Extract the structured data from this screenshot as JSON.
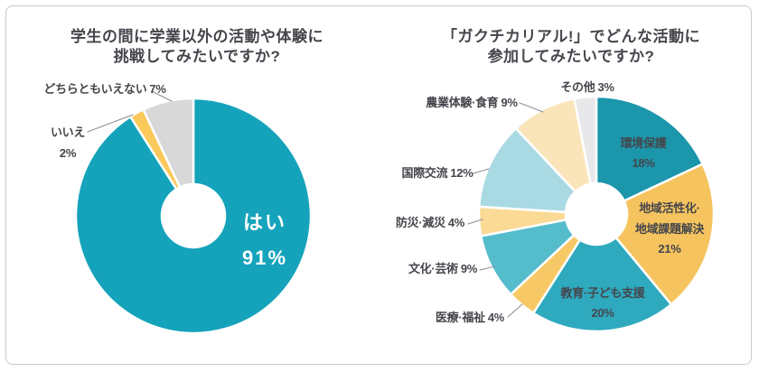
{
  "frame": {
    "background": "#FFFFFF",
    "border_color": "#C7C9CC"
  },
  "chart_data": [
    {
      "type": "pie",
      "subtype": "donut",
      "title": "学生の間に学業以外の活動や体験に挑戦してみたいですか?",
      "title_lines": [
        "学生の間に学業以外の活動や体験に",
        "挑戦してみたいですか?"
      ],
      "unit": "%",
      "start_angle": "12-oclock",
      "direction": "clockwise",
      "legend": "none",
      "slices": [
        {
          "label": "はい",
          "value": 91,
          "pct": "91%",
          "color": "#14A3BB",
          "label_position": "inside",
          "label_color": "#FFFFFF"
        },
        {
          "label": "いいえ",
          "value": 2,
          "pct": "2%",
          "color": "#FBC85A",
          "label_position": "outside",
          "label_color": "#45464C"
        },
        {
          "label": "どちらともいえない",
          "value": 7,
          "pct": "7%",
          "color": "#D8D8D9",
          "label_position": "outside",
          "label_color": "#45464C"
        }
      ]
    },
    {
      "type": "pie",
      "subtype": "donut",
      "title": "「ガクチカリアル!」でどんな活動に参加してみたいですか?",
      "title_lines": [
        "「ガクチカリアル!」でどんな活動に",
        "参加してみたいですか?"
      ],
      "unit": "%",
      "start_angle": "12-oclock",
      "direction": "clockwise",
      "legend": "none",
      "slices": [
        {
          "label": "環境保護",
          "value": 18,
          "pct": "18%",
          "color": "#1B96AB",
          "label_position": "inside",
          "label_color": "#3A3B40"
        },
        {
          "label": "地域活性化·地域課題解決",
          "label_lines": [
            "地域活性化·",
            "地域課題解決"
          ],
          "value": 21,
          "pct": "21%",
          "color": "#F6C45F",
          "label_position": "inside",
          "label_color": "#3A3B40"
        },
        {
          "label": "教育·子ども支援",
          "value": 20,
          "pct": "20%",
          "color": "#2EA9BE",
          "label_position": "inside",
          "label_color": "#3A3B40"
        },
        {
          "label": "医療·福祉",
          "value": 4,
          "pct": "4%",
          "color": "#F7C966",
          "label_position": "outside",
          "label_color": "#45464C"
        },
        {
          "label": "文化·芸術",
          "value": 9,
          "pct": "9%",
          "color": "#55BCCC",
          "label_position": "outside",
          "label_color": "#45464C"
        },
        {
          "label": "防災·減災",
          "value": 4,
          "pct": "4%",
          "color": "#FBDA96",
          "label_position": "outside",
          "label_color": "#45464C"
        },
        {
          "label": "国際交流",
          "value": 12,
          "pct": "12%",
          "color": "#A9DAE4",
          "label_position": "outside",
          "label_color": "#45464C"
        },
        {
          "label": "農業体験·食育",
          "value": 9,
          "pct": "9%",
          "color": "#FAE5BB",
          "label_position": "outside",
          "label_color": "#45464C"
        },
        {
          "label": "その他",
          "value": 3,
          "pct": "3%",
          "color": "#E8E8EA",
          "label_position": "outside",
          "label_color": "#45464C"
        }
      ]
    }
  ]
}
